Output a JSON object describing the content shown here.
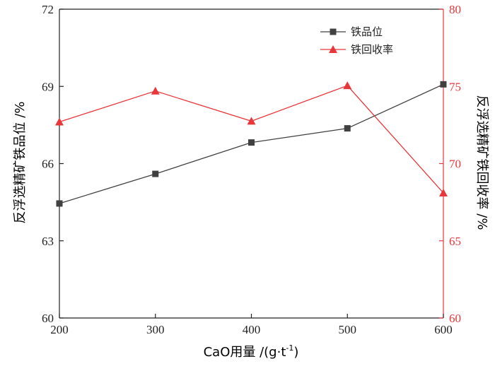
{
  "chart_data": {
    "type": "line",
    "xlabel": "CaO用量 /(g·t",
    "xlabel_sup": "-1",
    "xlabel_close": ")",
    "ylabel_left": "反浮选精矿铁品位 /%",
    "ylabel_right": "反浮选精矿铁回收率 /%",
    "x": [
      200,
      300,
      400,
      500,
      600
    ],
    "xlim": [
      200,
      600
    ],
    "xticks": [
      "200",
      "300",
      "400",
      "500",
      "600"
    ],
    "ylim_left": [
      60,
      72
    ],
    "yticks_left": [
      "60",
      "63",
      "66",
      "69",
      "72"
    ],
    "ylim_right": [
      60,
      80
    ],
    "yticks_right": [
      "60",
      "65",
      "70",
      "75",
      "80"
    ],
    "grid": false,
    "legend_position": "top-right",
    "series": [
      {
        "name": "铁品位",
        "axis": "left",
        "marker": "square",
        "color": "#404040",
        "values": [
          64.45,
          65.6,
          66.82,
          67.37,
          69.08
        ]
      },
      {
        "name": "铁回收率",
        "axis": "right",
        "marker": "triangle",
        "color": "#e8373a",
        "values": [
          72.7,
          74.7,
          72.75,
          75.05,
          68.1
        ]
      }
    ]
  }
}
